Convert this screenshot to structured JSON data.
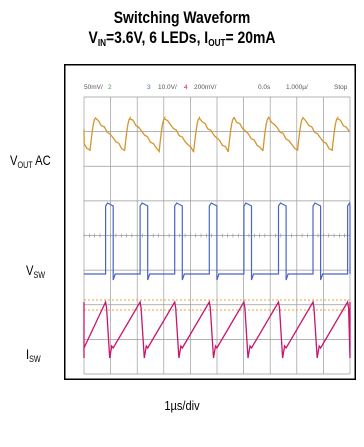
{
  "chart_data": {
    "type": "line",
    "title_line1": "Switching Waveform",
    "title_line2": {
      "v": "V",
      "v_sub": "IN",
      "v_val": "=3.6V, 6 LEDs, I",
      "i_sub": "OUT",
      "i_val": "= 20mA"
    },
    "xlabel": "1µs/div",
    "scope_header": {
      "ch1": "50mV/",
      "ch2": "2",
      "ch3": "3",
      "ch3_scale": "10.0V/",
      "ch4": "4",
      "ch4_scale": "200mV/",
      "offset": "0.0s",
      "timebase": "1.000µ/",
      "mode": "Stop"
    },
    "series": [
      {
        "name": "V",
        "name_sub": "OUT",
        "name_suffix": " AC",
        "color": "#d4952e",
        "period_div": 1.3,
        "phase_div": 0.0
      },
      {
        "name": "V",
        "name_sub": "SW",
        "name_suffix": "",
        "color": "#4a64c8",
        "period_div": 1.3,
        "phase_div": 0.0,
        "duty": 0.22
      },
      {
        "name": "I",
        "name_sub": "SW",
        "name_suffix": "",
        "color": "#c8156e",
        "period_div": 1.3,
        "phase_div": 0.0
      }
    ],
    "reference_line_color": "#f0a040",
    "grid": true,
    "grid_divisions": {
      "x": 10,
      "y": 8
    }
  }
}
